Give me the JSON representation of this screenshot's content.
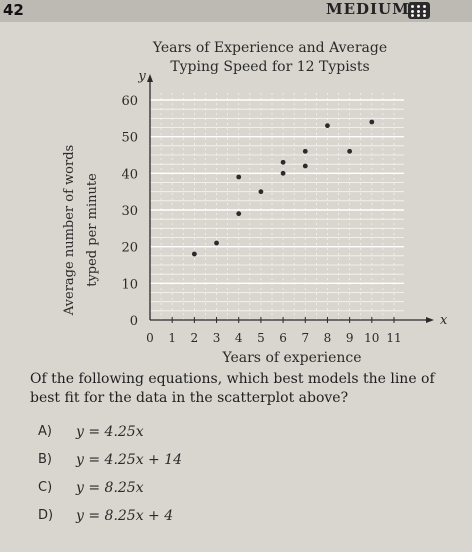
{
  "header": {
    "question_number": "42",
    "difficulty": "MEDIUM",
    "difficulty_icon": "difficulty-grid-icon"
  },
  "chart_data": {
    "type": "scatter",
    "title": "Years of Experience and Average Typing Speed for 12 Typists",
    "title_lines": [
      "Years of Experience and Average",
      "Typing Speed for 12 Typists"
    ],
    "xlabel": "Years of experience",
    "ylabel_lines": [
      "Average number of words",
      "typed per minute"
    ],
    "x_axis_letter": "x",
    "y_axis_letter": "y",
    "xlim": [
      0,
      11
    ],
    "ylim": [
      0,
      60
    ],
    "x_ticks": [
      "0",
      "1",
      "2",
      "3",
      "4",
      "5",
      "6",
      "7",
      "8",
      "9",
      "10",
      "11"
    ],
    "y_ticks": [
      "0",
      "10",
      "20",
      "30",
      "40",
      "50",
      "60"
    ],
    "grid": true,
    "points": [
      {
        "x": 2,
        "y": 18
      },
      {
        "x": 3,
        "y": 21
      },
      {
        "x": 4,
        "y": 29
      },
      {
        "x": 4,
        "y": 39
      },
      {
        "x": 5,
        "y": 35
      },
      {
        "x": 6,
        "y": 40
      },
      {
        "x": 6,
        "y": 43
      },
      {
        "x": 7,
        "y": 42
      },
      {
        "x": 7,
        "y": 46
      },
      {
        "x": 8,
        "y": 53
      },
      {
        "x": 9,
        "y": 46
      },
      {
        "x": 10,
        "y": 54
      }
    ]
  },
  "question": {
    "text": "Of the following equations, which best models the line of best fit for the data in the scatterplot above?",
    "choices": [
      {
        "letter": "A)",
        "equation": "y = 4.25x"
      },
      {
        "letter": "B)",
        "equation": "y = 4.25x + 14"
      },
      {
        "letter": "C)",
        "equation": "y = 8.25x"
      },
      {
        "letter": "D)",
        "equation": "y = 8.25x + 4"
      }
    ]
  },
  "colors": {
    "background": "#d9d6cf",
    "grid": "#ffffff",
    "point": "#2b2b2b",
    "text": "#2a2a2a"
  }
}
